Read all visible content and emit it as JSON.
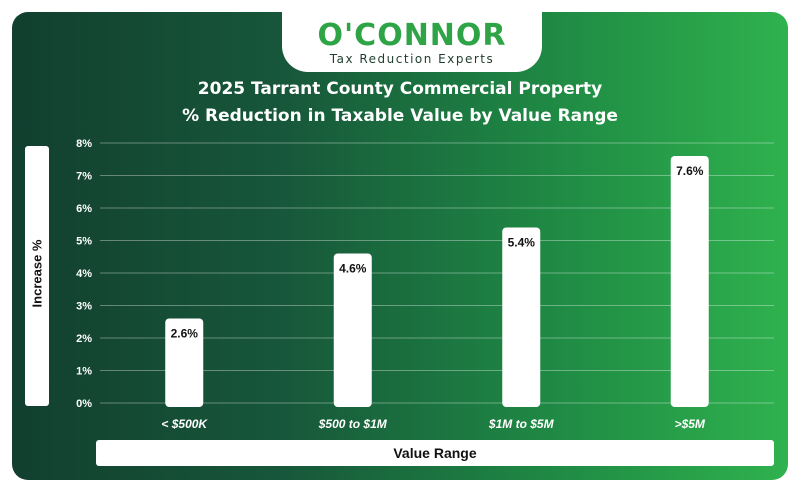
{
  "logo": {
    "name": "O'CONNOR",
    "tagline": "Tax Reduction Experts"
  },
  "chart_data": {
    "type": "bar",
    "title": "2025 Tarrant County Commercial Property",
    "subtitle": "% Reduction in Taxable Value by Value Range",
    "xlabel": "Value Range",
    "ylabel": "Increase %",
    "categories": [
      "< $500K",
      "$500 to $1M",
      "$1M to $5M",
      ">$5M"
    ],
    "values": [
      2.6,
      4.6,
      5.4,
      7.6
    ],
    "data_labels": [
      "2.6%",
      "4.6%",
      "5.4%",
      "7.6%"
    ],
    "ylim": [
      0,
      8
    ],
    "yticks": [
      "0%",
      "1%",
      "2%",
      "3%",
      "4%",
      "5%",
      "6%",
      "7%",
      "8%"
    ],
    "grid": true,
    "bar_color": "#ffffff"
  }
}
